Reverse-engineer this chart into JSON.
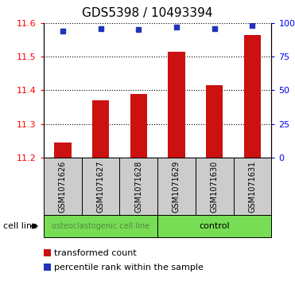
{
  "title": "GDS5398 / 10493394",
  "samples": [
    "GSM1071626",
    "GSM1071627",
    "GSM1071628",
    "GSM1071629",
    "GSM1071630",
    "GSM1071631"
  ],
  "bar_values": [
    11.245,
    11.37,
    11.39,
    11.515,
    11.415,
    11.565
  ],
  "bar_bottom": 11.2,
  "percentile_values": [
    94,
    96,
    95,
    97,
    96,
    98
  ],
  "bar_color": "#cc1111",
  "dot_color": "#2233bb",
  "ylim_left": [
    11.2,
    11.6
  ],
  "ylim_right": [
    0,
    100
  ],
  "yticks_left": [
    11.2,
    11.3,
    11.4,
    11.5,
    11.6
  ],
  "yticks_right": [
    0,
    25,
    50,
    75,
    100
  ],
  "ytick_labels_right": [
    "0",
    "25",
    "50",
    "75",
    "100%"
  ],
  "group1_label": "osteoclastogenic cell line",
  "group2_label": "control",
  "group1_indices": [
    0,
    1,
    2
  ],
  "group2_indices": [
    3,
    4,
    5
  ],
  "group1_label_color": "#558844",
  "group2_label_color": "#000000",
  "group_bg_color": "#77dd55",
  "sample_bg_color": "#cccccc",
  "cell_line_label": "cell line",
  "legend_bar_label": "transformed count",
  "legend_dot_label": "percentile rank within the sample",
  "title_fontsize": 11,
  "tick_label_fontsize": 8,
  "sample_label_fontsize": 7,
  "group_label_fontsize": 8,
  "legend_fontsize": 8
}
